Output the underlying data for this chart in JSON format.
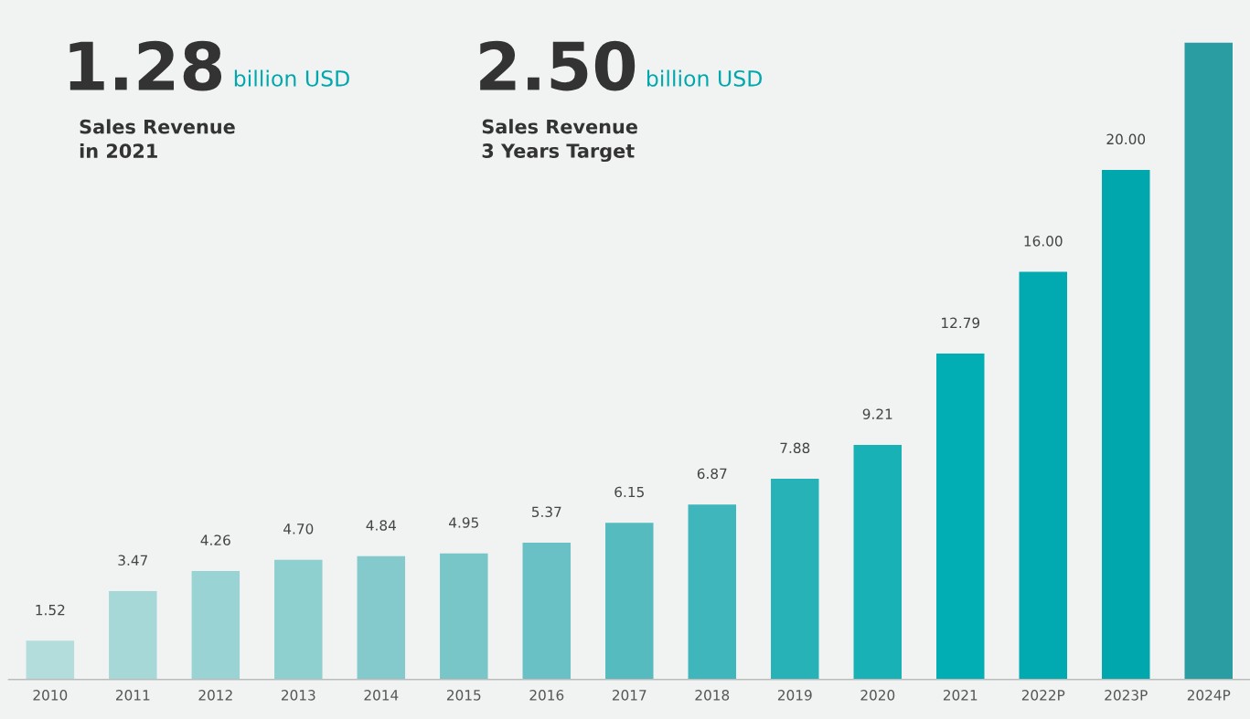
{
  "chart_data": {
    "type": "bar",
    "categories": [
      "2010",
      "2011",
      "2012",
      "2013",
      "2014",
      "2015",
      "2016",
      "2017",
      "2018",
      "2019",
      "2020",
      "2021",
      "2022P",
      "2023P",
      "2024P"
    ],
    "values": [
      1.52,
      3.47,
      4.26,
      4.7,
      4.84,
      4.95,
      5.37,
      6.15,
      6.87,
      7.88,
      9.21,
      12.79,
      16.0,
      20.0,
      25.0
    ],
    "colors": [
      "#b3dddc",
      "#a6d8d8",
      "#99d3d4",
      "#8ecfd0",
      "#84cacc",
      "#79c6c9",
      "#69c1c5",
      "#55bbbf",
      "#3fb6bb",
      "#26b2b7",
      "#18b1b6",
      "#00aeb3",
      "#00aab0",
      "#00a8ad",
      "#2a9da2"
    ],
    "value_labels": [
      "1.52",
      "3.47",
      "4.26",
      "4.70",
      "4.84",
      "4.95",
      "5.37",
      "6.15",
      "6.87",
      "7.88",
      "9.21",
      "12.79",
      "16.00",
      "20.00",
      null
    ],
    "tick_labels": "x",
    "grid": false,
    "annotations": [
      "1.28",
      "billion USD",
      "Sales Revenue\nin 2021",
      "2.50",
      "billion USD",
      "Sales Revenue\n3 Years Target"
    ]
  }
}
